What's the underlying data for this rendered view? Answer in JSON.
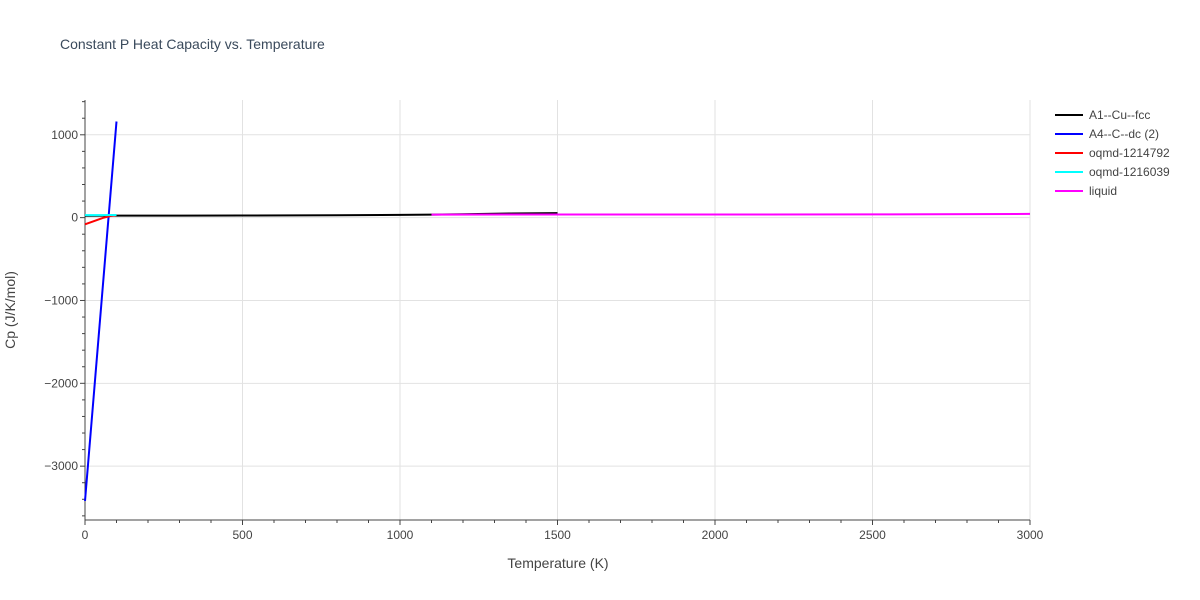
{
  "chart_data": {
    "type": "line",
    "title": "Constant P Heat Capacity vs. Temperature",
    "xlabel": "Temperature (K)",
    "ylabel": "Cp (J/K/mol)",
    "xlim": [
      0,
      3000
    ],
    "ylim": [
      -3650,
      1420
    ],
    "x_ticks": [
      0,
      500,
      1000,
      1500,
      2000,
      2500,
      3000
    ],
    "x_tick_labels": [
      "0",
      "500",
      "1000",
      "1500",
      "2000",
      "2500",
      "3000"
    ],
    "y_ticks": [
      1000,
      0,
      -1000,
      -2000,
      -3000
    ],
    "y_tick_labels": [
      "1000",
      "0",
      "−1000",
      "−2000",
      "−3000"
    ],
    "grid": true,
    "legend_position": "right",
    "series": [
      {
        "name": "A1--Cu--fcc",
        "color": "#000000",
        "x": [
          0,
          100,
          300,
          500,
          800,
          1000,
          1100,
          1200,
          1350,
          1500
        ],
        "y": [
          22,
          24,
          25,
          26,
          28,
          33,
          37,
          42,
          50,
          55
        ]
      },
      {
        "name": "A4--C--dc (2)",
        "color": "#0000ff",
        "x": [
          0,
          100
        ],
        "y": [
          -3420,
          1160
        ]
      },
      {
        "name": "oqmd-1214792",
        "color": "#ff0000",
        "x": [
          0,
          30,
          60,
          80,
          100
        ],
        "y": [
          -80,
          -40,
          0,
          20,
          30
        ]
      },
      {
        "name": "oqmd-1216039",
        "color": "#00ffff",
        "x": [
          0,
          50,
          100
        ],
        "y": [
          30,
          31,
          32
        ]
      },
      {
        "name": "liquid",
        "color": "#ff00ff",
        "x": [
          1100,
          1500,
          2000,
          2500,
          3000
        ],
        "y": [
          37,
          38,
          38,
          39,
          45
        ]
      }
    ]
  }
}
